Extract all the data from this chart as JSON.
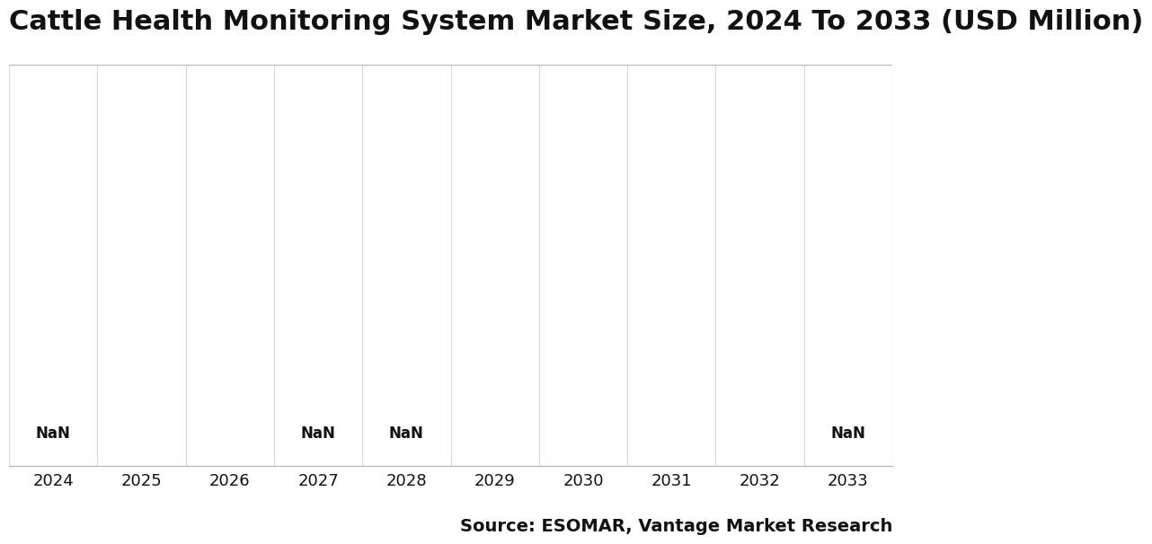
{
  "title": "Cattle Health Monitoring System Market Size, 2024 To 2033 (USD Million)",
  "categories": [
    "2024",
    "2025",
    "2026",
    "2027",
    "2028",
    "2029",
    "2030",
    "2031",
    "2032",
    "2033"
  ],
  "nan_labels": [
    true,
    false,
    false,
    true,
    true,
    false,
    false,
    false,
    false,
    true
  ],
  "source_text": "Source: ESOMAR, Vantage Market Research",
  "title_fontsize": 22,
  "source_fontsize": 14,
  "nan_fontsize": 12,
  "xtick_fontsize": 13,
  "background_color": "#ffffff",
  "plot_area_color": "#ffffff",
  "grid_color": "#d8d8d8",
  "border_color": "#bbbbbb",
  "text_color": "#111111"
}
